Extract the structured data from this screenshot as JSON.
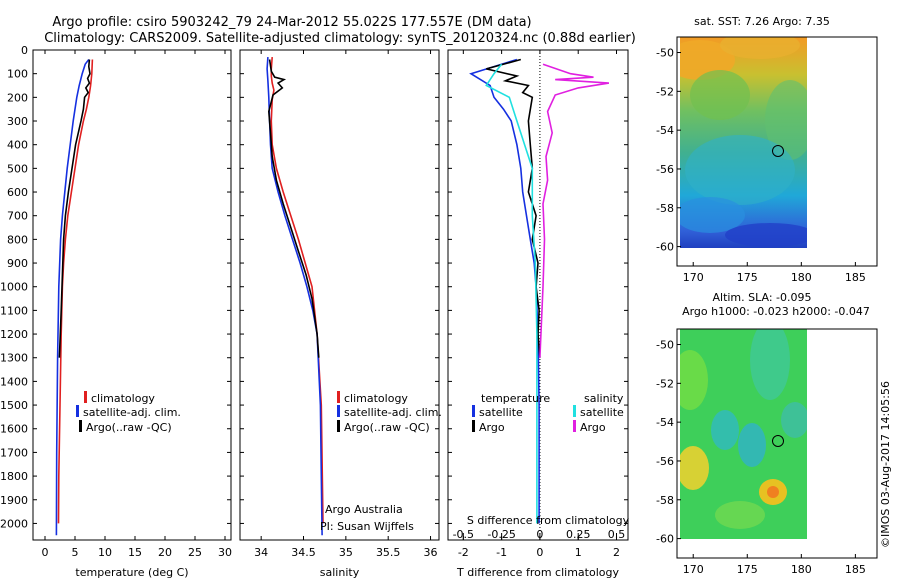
{
  "title_line1": "Argo profile: csiro 5903242_79 24-Mar-2012 55.022S 177.557E (DM data)",
  "title_line2": "Climatology: CARS2009. Satellite-adjusted climatology: synTS_20120324.nc (0.88d earlier)",
  "credit": "Argo Australia",
  "pi": "PI: Susan Wijffels",
  "timestamp": "©IMOS 03-Aug-2017 14:05:56",
  "colors": {
    "climatology": "#e02020",
    "satellite": "#1530e0",
    "argo": "#000000",
    "sal_sat": "#20e0e0",
    "sal_argo": "#e020e0",
    "sst_warm": "#f0a020",
    "sst_cool": "#20a0d8"
  },
  "chart_data": [
    {
      "type": "line",
      "title": "",
      "xlabel": "temperature (deg C)",
      "ylabel": "depth",
      "xlim": [
        -2,
        31
      ],
      "ylim": [
        2070,
        0
      ],
      "xticks": [
        0,
        5,
        10,
        15,
        20,
        25,
        30
      ],
      "yticks": [
        0,
        100,
        200,
        300,
        400,
        500,
        600,
        700,
        800,
        900,
        1000,
        1100,
        1200,
        1300,
        1400,
        1500,
        1600,
        1700,
        1800,
        1900,
        2000
      ],
      "legend": [
        "climatology",
        "satellite-adj. clim.",
        "Argo(..raw -QC)"
      ],
      "series": [
        {
          "name": "climatology",
          "color": "#e02020",
          "x": [
            7.9,
            7.8,
            7.6,
            7.3,
            6.9,
            6.4,
            5.6,
            5.0,
            4.4,
            3.8,
            3.4,
            3.1,
            2.9,
            2.7,
            2.5,
            2.3,
            2.25
          ],
          "y": [
            40,
            100,
            150,
            200,
            250,
            300,
            400,
            500,
            600,
            700,
            800,
            900,
            1000,
            1200,
            1500,
            1800,
            2000
          ]
        },
        {
          "name": "satellite-adj. clim.",
          "color": "#1530e0",
          "x": [
            7.3,
            6.7,
            6.2,
            5.7,
            5.3,
            4.7,
            4.2,
            3.7,
            3.3,
            2.9,
            2.6,
            2.3,
            2.1,
            1.95,
            1.9
          ],
          "y": [
            40,
            60,
            100,
            150,
            200,
            300,
            400,
            500,
            600,
            700,
            800,
            1000,
            1300,
            1700,
            2050
          ]
        },
        {
          "name": "Argo(..raw -QC)",
          "color": "#000000",
          "x": [
            7.4,
            7.3,
            7.5,
            7.1,
            7.4,
            6.8,
            7.2,
            6.6,
            6.4,
            6.0,
            5.1,
            4.5,
            3.9,
            3.4,
            3.1,
            2.9,
            2.7,
            2.4
          ],
          "y": [
            40,
            70,
            100,
            120,
            140,
            160,
            180,
            200,
            250,
            300,
            400,
            500,
            600,
            700,
            800,
            950,
            1100,
            1300
          ]
        }
      ]
    },
    {
      "type": "line",
      "title": "",
      "xlabel": "salinity",
      "ylabel": "depth",
      "xlim": [
        33.75,
        36.1
      ],
      "ylim": [
        2070,
        0
      ],
      "xticks": [
        34,
        34.5,
        35,
        35.5,
        36
      ],
      "xticklabels": [
        "34",
        "34.5",
        "35",
        "35.5",
        "36"
      ],
      "legend": [
        "climatology",
        "satellite-adj. clim.",
        "Argo(..raw -QC)"
      ],
      "series": [
        {
          "name": "climatology",
          "color": "#e02020",
          "x": [
            34.13,
            34.12,
            34.12,
            34.13,
            34.15,
            34.13,
            34.12,
            34.13,
            34.18,
            34.26,
            34.35,
            34.44,
            34.52,
            34.6,
            34.66,
            34.71,
            34.73
          ],
          "y": [
            30,
            80,
            110,
            140,
            170,
            210,
            300,
            400,
            500,
            600,
            700,
            800,
            900,
            1000,
            1200,
            1500,
            2000
          ]
        },
        {
          "name": "satellite-adj. clim.",
          "color": "#1530e0",
          "x": [
            34.08,
            34.07,
            34.08,
            34.09,
            34.1,
            34.11,
            34.13,
            34.2,
            34.28,
            34.37,
            34.46,
            34.54,
            34.61,
            34.66,
            34.7,
            34.71,
            34.72
          ],
          "y": [
            30,
            80,
            130,
            200,
            300,
            400,
            500,
            600,
            700,
            800,
            900,
            1000,
            1100,
            1200,
            1500,
            1800,
            2050
          ]
        },
        {
          "name": "Argo(..raw -QC)",
          "color": "#000000",
          "x": [
            34.1,
            34.12,
            34.16,
            34.27,
            34.2,
            34.25,
            34.14,
            34.09,
            34.11,
            34.13,
            34.18,
            34.26,
            34.35,
            34.44,
            34.53,
            34.6,
            34.66,
            34.68
          ],
          "y": [
            40,
            90,
            115,
            125,
            140,
            160,
            190,
            260,
            350,
            450,
            550,
            650,
            750,
            850,
            950,
            1050,
            1200,
            1300
          ]
        }
      ]
    },
    {
      "type": "line",
      "title": "",
      "xlabel": "T difference from climatology",
      "ylabel": "depth",
      "xlim": [
        -2.4,
        2.3
      ],
      "ylim": [
        2070,
        0
      ],
      "xticks": [
        -2,
        -1,
        0,
        1,
        2
      ],
      "secondary_xlabel": "S difference from climatology",
      "secondary_xticks": [
        -0.5,
        -0.25,
        0,
        0.25,
        0.5
      ],
      "secondary_xticklabels": [
        "-0.5",
        "-0.25",
        "0",
        "0.25",
        "0.5"
      ],
      "legend": [
        "temperature satellite",
        "temperature Argo",
        "salinity satellite",
        "salinity Argo"
      ],
      "legend_headings": [
        "temperature",
        "salinity"
      ],
      "legend_labels": [
        "satellite",
        "Argo",
        "satellite",
        "Argo"
      ],
      "series": [
        {
          "name": "temperature satellite",
          "color": "#1530e0",
          "x": [
            -0.6,
            -1.8,
            -1.3,
            -1.2,
            -0.95,
            -0.75,
            -0.6,
            -0.5,
            -0.45,
            -0.35,
            -0.25,
            -0.15,
            -0.1,
            -0.05,
            -0.02,
            -0.02
          ],
          "y": [
            40,
            100,
            150,
            200,
            250,
            300,
            400,
            500,
            600,
            700,
            800,
            900,
            1000,
            1200,
            1500,
            2000
          ]
        },
        {
          "name": "temperature Argo",
          "color": "#000000",
          "x": [
            -0.5,
            -1.4,
            -0.6,
            -0.9,
            -0.3,
            -0.45,
            -0.2,
            -0.3,
            -0.25,
            -0.2,
            -0.3,
            -0.1,
            -0.2,
            -0.05,
            -0.1,
            -0.02,
            -0.05,
            0.0
          ],
          "y": [
            40,
            80,
            110,
            130,
            150,
            180,
            200,
            300,
            400,
            500,
            600,
            700,
            800,
            900,
            1000,
            1100,
            1200,
            1300
          ]
        },
        {
          "name": "salinity satellite",
          "color": "#20e0e0",
          "x": [
            -0.25,
            -0.3,
            -0.35,
            -0.2,
            -0.15,
            -0.1,
            -0.05,
            -0.05,
            -0.03,
            -0.02,
            -0.02
          ],
          "y": [
            60,
            100,
            150,
            200,
            300,
            400,
            500,
            700,
            900,
            1200,
            2000
          ]
        },
        {
          "name": "salinity Argo",
          "color": "#e020e0",
          "x": [
            0.02,
            0.2,
            0.35,
            0.1,
            0.45,
            0.25,
            0.1,
            0.05,
            0.08,
            0.04,
            0.05,
            0.02,
            0.03,
            0.02,
            0.0
          ],
          "y": [
            60,
            100,
            115,
            125,
            140,
            160,
            190,
            260,
            350,
            450,
            550,
            650,
            800,
            1000,
            1300
          ]
        }
      ]
    },
    {
      "type": "heatmap",
      "title": "sat. SST: 7.26 Argo: 7.35",
      "xlim": [
        168.5,
        187
      ],
      "ylim": [
        -61,
        -49.2
      ],
      "xticks": [
        170,
        175,
        180,
        185
      ],
      "yticks": [
        -50,
        -52,
        -54,
        -56,
        -58,
        -60
      ],
      "marker": {
        "lon": 177.557,
        "lat": -55.022
      }
    },
    {
      "type": "heatmap",
      "title": "Altim. SLA: -0.095",
      "subtitle": "Argo h1000: -0.023 h2000: -0.047",
      "xlim": [
        168.5,
        187
      ],
      "ylim": [
        -61,
        -49.2
      ],
      "xticks": [
        170,
        175,
        180,
        185
      ],
      "yticks": [
        -50,
        -52,
        -54,
        -56,
        -58,
        -60
      ],
      "marker": {
        "lon": 177.557,
        "lat": -55.022
      }
    }
  ]
}
